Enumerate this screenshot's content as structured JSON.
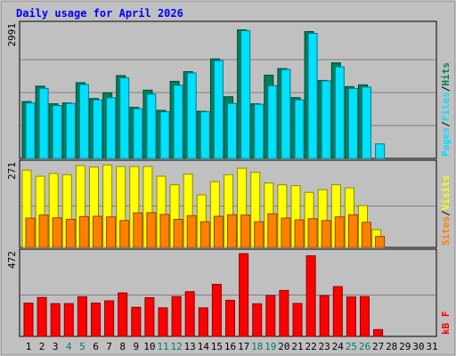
{
  "chart_data": {
    "type": "bar",
    "title": "Daily usage for April 2026",
    "x": [
      "1",
      "2",
      "3",
      "4",
      "5",
      "6",
      "7",
      "8",
      "9",
      "10",
      "11",
      "12",
      "13",
      "14",
      "15",
      "16",
      "17",
      "18",
      "19",
      "20",
      "21",
      "22",
      "23",
      "24",
      "25",
      "26",
      "27",
      "28",
      "29",
      "30",
      "31"
    ],
    "weekend_days": [
      4,
      5,
      11,
      12,
      18,
      19,
      25,
      26
    ],
    "panels": [
      {
        "name": "hits-files-pages",
        "max_label": "2991",
        "ymax": 2991,
        "ylabels": [
          "Pages",
          "Files",
          "Hits"
        ],
        "series": [
          {
            "name": "Hits",
            "color": "#00805c",
            "values": [
              1290,
              1640,
              1240,
              1260,
              1720,
              1360,
              1490,
              1880,
              1160,
              1550,
              1090,
              1750,
              1970,
              1070,
              2260,
              1400,
              2920,
              1240,
              1890,
              2040,
              1380,
              2880,
              1770,
              2170,
              1630,
              1670,
              0
            ]
          },
          {
            "name": "Files",
            "color": "#00e0ff",
            "values": [
              1260,
              1590,
              1200,
              1250,
              1680,
              1330,
              1380,
              1830,
              1130,
              1460,
              1060,
              1660,
              1940,
              1060,
              2220,
              1250,
              2900,
              1230,
              1650,
              2020,
              1330,
              2840,
              1760,
              2080,
              1590,
              1620,
              330
            ]
          }
        ]
      },
      {
        "name": "pages-visits-sites",
        "max_label": "271",
        "ymax": 271,
        "ylabels": [
          "Sites",
          "Visits"
        ],
        "series": [
          {
            "name": "Visits",
            "color": "#ffff00",
            "values": [
              253,
              233,
              242,
              238,
              268,
              263,
              270,
              265,
              265,
              265,
              233,
              205,
              240,
              172,
              215,
              238,
              259,
              246,
              211,
              205,
              202,
              180,
              189,
              205,
              195,
              137,
              58
            ]
          },
          {
            "name": "Sites",
            "color": "#ff8000",
            "values": [
              96,
              106,
              97,
              92,
              101,
              102,
              100,
              88,
              113,
              114,
              108,
              92,
              104,
              84,
              102,
              107,
              106,
              84,
              110,
              96,
              90,
              94,
              88,
              100,
              107,
              82,
              36
            ]
          }
        ]
      },
      {
        "name": "kbytes",
        "max_label": "472",
        "ymax": 472,
        "ylabels": [
          "kB F"
        ],
        "series": [
          {
            "name": "kB F",
            "color": "#ff0000",
            "values": [
              190,
              222,
              187,
              187,
              226,
              190,
              203,
              248,
              166,
              221,
              163,
              227,
              255,
              163,
              297,
              206,
              472,
              186,
              233,
              262,
              188,
              460,
              232,
              284,
              225,
              227,
              39
            ]
          }
        ]
      }
    ]
  }
}
